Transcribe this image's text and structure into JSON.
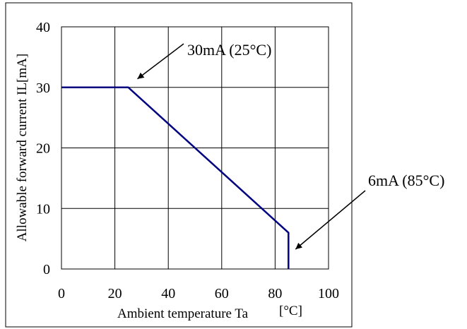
{
  "chart_data": {
    "type": "line",
    "title": "",
    "xlabel": "Ambient temperature Ta",
    "xlabel_unit": "[°C]",
    "ylabel": "Allowable forward current IL[mA]",
    "xlim": [
      0,
      100
    ],
    "ylim": [
      0,
      40
    ],
    "xticks": [
      0,
      20,
      40,
      60,
      80,
      100
    ],
    "yticks": [
      0,
      10,
      20,
      30,
      40
    ],
    "grid": true,
    "series": [
      {
        "color": "#000080",
        "x": [
          0,
          25,
          85,
          85
        ],
        "y": [
          30,
          30,
          6,
          0
        ]
      }
    ],
    "annotations": [
      {
        "text": "30mA (25°C)",
        "target": [
          25,
          30
        ]
      },
      {
        "text": "6mA (85°C)",
        "target": [
          85,
          0
        ]
      }
    ]
  }
}
